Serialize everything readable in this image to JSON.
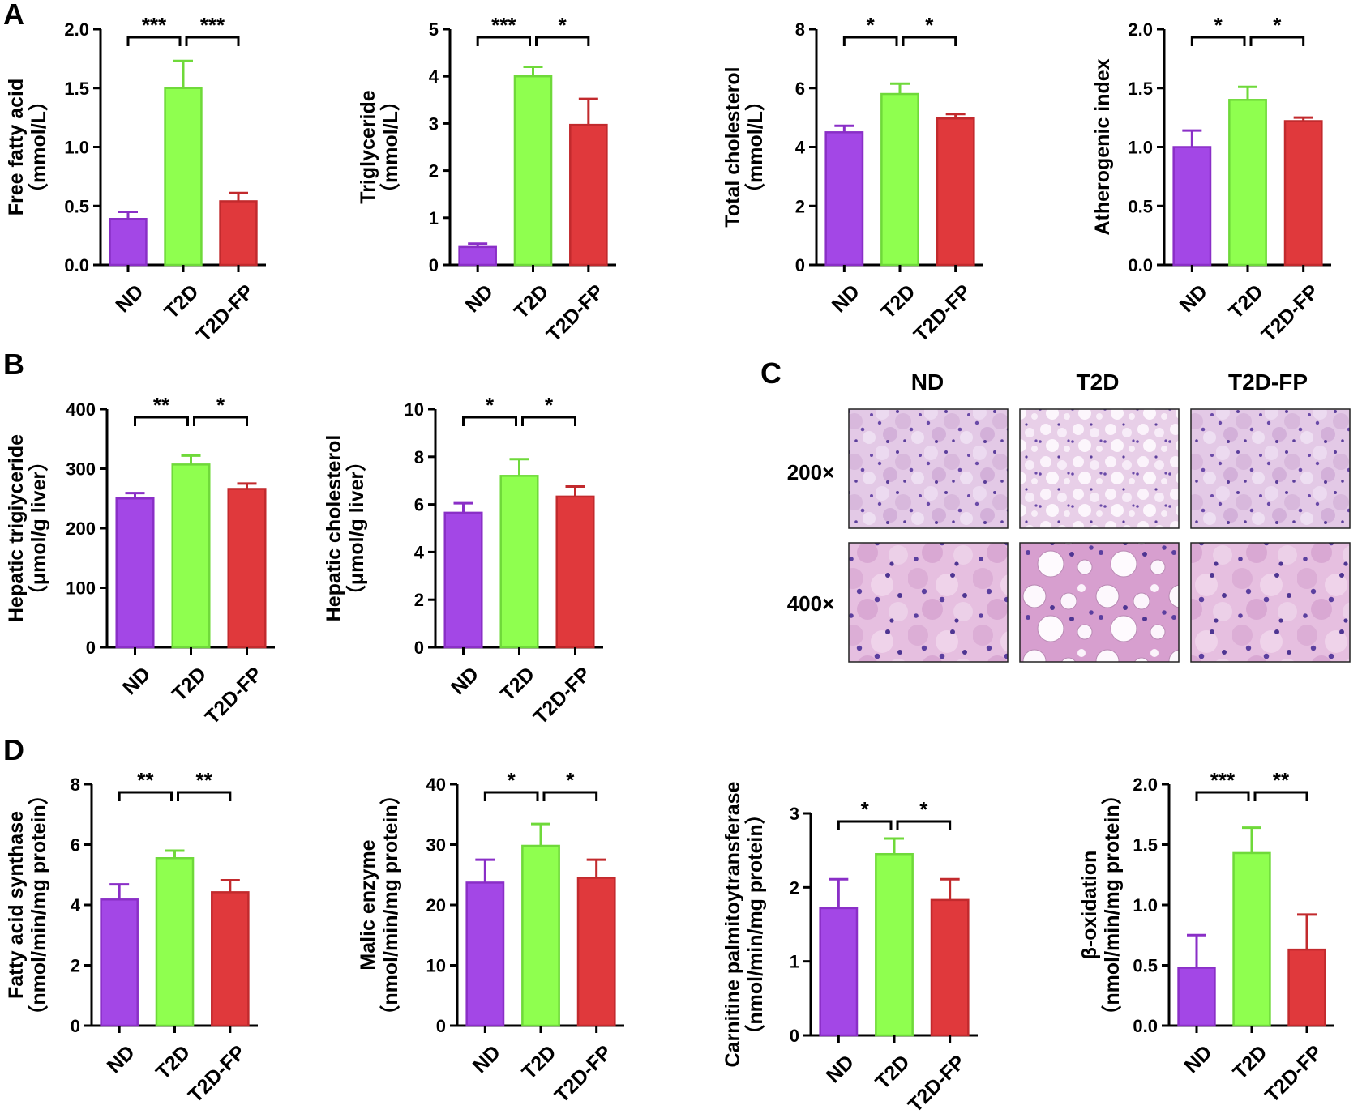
{
  "panels": [
    {
      "letter": "A"
    },
    {
      "letter": "B"
    },
    {
      "letter": "C"
    },
    {
      "letter": "D"
    }
  ],
  "colors": {
    "ND": "#a347e6",
    "T2D": "#8fff4f",
    "T2D-FP": "#e0393c"
  },
  "chart_data": [
    {
      "type": "bar",
      "panel": "A",
      "categories": [
        "ND",
        "T2D",
        "T2D-FP"
      ],
      "values": [
        0.39,
        1.5,
        0.54
      ],
      "errors": [
        0.06,
        0.23,
        0.07
      ],
      "ylabel": "Free fatty acid",
      "ylabel2": "（mmol/L）",
      "ylim": [
        0,
        2.0
      ],
      "ticks": [
        "0.0",
        "0.5",
        "1.0",
        "1.5",
        "2.0"
      ],
      "sig": [
        {
          "from": 0,
          "to": 1,
          "label": "***"
        },
        {
          "from": 1,
          "to": 2,
          "label": "***"
        }
      ]
    },
    {
      "type": "bar",
      "panel": "A",
      "categories": [
        "ND",
        "T2D",
        "T2D-FP"
      ],
      "values": [
        0.38,
        4.0,
        2.97
      ],
      "errors": [
        0.07,
        0.2,
        0.55
      ],
      "ylabel": "Triglyceride",
      "ylabel2": "（mmol/L）",
      "ylim": [
        0,
        5
      ],
      "ticks": [
        "0",
        "1",
        "2",
        "3",
        "4",
        "5"
      ],
      "sig": [
        {
          "from": 0,
          "to": 1,
          "label": "***"
        },
        {
          "from": 1,
          "to": 2,
          "label": "*"
        }
      ]
    },
    {
      "type": "bar",
      "panel": "A",
      "categories": [
        "ND",
        "T2D",
        "T2D-FP"
      ],
      "values": [
        4.5,
        5.8,
        4.97
      ],
      "errors": [
        0.22,
        0.35,
        0.15
      ],
      "ylabel": "Total cholesterol",
      "ylabel2": "（mmol/L）",
      "ylim": [
        0,
        8
      ],
      "ticks": [
        "0",
        "2",
        "4",
        "6",
        "8"
      ],
      "sig": [
        {
          "from": 0,
          "to": 1,
          "label": "*"
        },
        {
          "from": 1,
          "to": 2,
          "label": "*"
        }
      ]
    },
    {
      "type": "bar",
      "panel": "A",
      "categories": [
        "ND",
        "T2D",
        "T2D-FP"
      ],
      "values": [
        1.0,
        1.4,
        1.22
      ],
      "errors": [
        0.14,
        0.11,
        0.03
      ],
      "ylabel": "Atherogenic index",
      "ylabel2": "",
      "ylim": [
        0,
        2.0
      ],
      "ticks": [
        "0.0",
        "0.5",
        "1.0",
        "1.5",
        "2.0"
      ],
      "sig": [
        {
          "from": 0,
          "to": 1,
          "label": "*"
        },
        {
          "from": 1,
          "to": 2,
          "label": "*"
        }
      ]
    },
    {
      "type": "bar",
      "panel": "B",
      "categories": [
        "ND",
        "T2D",
        "T2D-FP"
      ],
      "values": [
        250,
        307,
        266
      ],
      "errors": [
        9,
        15,
        9
      ],
      "ylabel": "Hepatic trigiyceride",
      "ylabel2": "（μmol/g liver）",
      "ylim": [
        0,
        400
      ],
      "ticks": [
        "0",
        "100",
        "200",
        "300",
        "400"
      ],
      "sig": [
        {
          "from": 0,
          "to": 1,
          "label": "**"
        },
        {
          "from": 1,
          "to": 2,
          "label": "*"
        }
      ]
    },
    {
      "type": "bar",
      "panel": "B",
      "categories": [
        "ND",
        "T2D",
        "T2D-FP"
      ],
      "values": [
        5.65,
        7.2,
        6.33
      ],
      "errors": [
        0.4,
        0.7,
        0.42
      ],
      "ylabel": "Hepatic cholesterol",
      "ylabel2": "（μmol/g liver）",
      "ylim": [
        0,
        10
      ],
      "ticks": [
        "0",
        "2",
        "4",
        "6",
        "8",
        "10"
      ],
      "sig": [
        {
          "from": 0,
          "to": 1,
          "label": "*"
        },
        {
          "from": 1,
          "to": 2,
          "label": "*"
        }
      ]
    },
    {
      "type": "bar",
      "panel": "D",
      "categories": [
        "ND",
        "T2D",
        "T2D-FP"
      ],
      "values": [
        4.18,
        5.55,
        4.42
      ],
      "errors": [
        0.5,
        0.25,
        0.4
      ],
      "ylabel": "Fatty acid synthase",
      "ylabel2": "（nmol/min/mg protein）",
      "ylim": [
        0,
        8
      ],
      "ticks": [
        "0",
        "2",
        "4",
        "6",
        "8"
      ],
      "sig": [
        {
          "from": 0,
          "to": 1,
          "label": "**"
        },
        {
          "from": 1,
          "to": 2,
          "label": "**"
        }
      ]
    },
    {
      "type": "bar",
      "panel": "D",
      "categories": [
        "ND",
        "T2D",
        "T2D-FP"
      ],
      "values": [
        23.7,
        29.8,
        24.5
      ],
      "errors": [
        3.8,
        3.6,
        3.0
      ],
      "ylabel": "Malic enzyme",
      "ylabel2": "（nmol/min/mg protein）",
      "ylim": [
        0,
        40
      ],
      "ticks": [
        "0",
        "10",
        "20",
        "30",
        "40"
      ],
      "sig": [
        {
          "from": 0,
          "to": 1,
          "label": "*"
        },
        {
          "from": 1,
          "to": 2,
          "label": "*"
        }
      ]
    },
    {
      "type": "bar",
      "panel": "D",
      "categories": [
        "ND",
        "T2D",
        "T2D-FP"
      ],
      "values": [
        1.72,
        2.45,
        1.83
      ],
      "errors": [
        0.39,
        0.21,
        0.28
      ],
      "ylabel": "Carnitine palmitoytransferase",
      "ylabel2": "（nmol/min/mg protein）",
      "ylim": [
        0,
        3
      ],
      "ticks": [
        "0",
        "1",
        "2",
        "3"
      ],
      "sig": [
        {
          "from": 0,
          "to": 1,
          "label": "*"
        },
        {
          "from": 1,
          "to": 2,
          "label": "*"
        }
      ]
    },
    {
      "type": "bar",
      "panel": "D",
      "categories": [
        "ND",
        "T2D",
        "T2D-FP"
      ],
      "values": [
        0.48,
        1.43,
        0.63
      ],
      "errors": [
        0.27,
        0.21,
        0.29
      ],
      "ylabel": "β-oxidation",
      "ylabel2": "（nmol/min/mg protein）",
      "ylim": [
        0,
        2.0
      ],
      "ticks": [
        "0.0",
        "0.5",
        "1.0",
        "1.5",
        "2.0"
      ],
      "sig": [
        {
          "from": 0,
          "to": 1,
          "label": "***"
        },
        {
          "from": 1,
          "to": 2,
          "label": "**"
        }
      ]
    }
  ],
  "histology": {
    "columns": [
      "ND",
      "T2D",
      "T2D-FP"
    ],
    "rows": [
      "200×",
      "400×"
    ]
  }
}
